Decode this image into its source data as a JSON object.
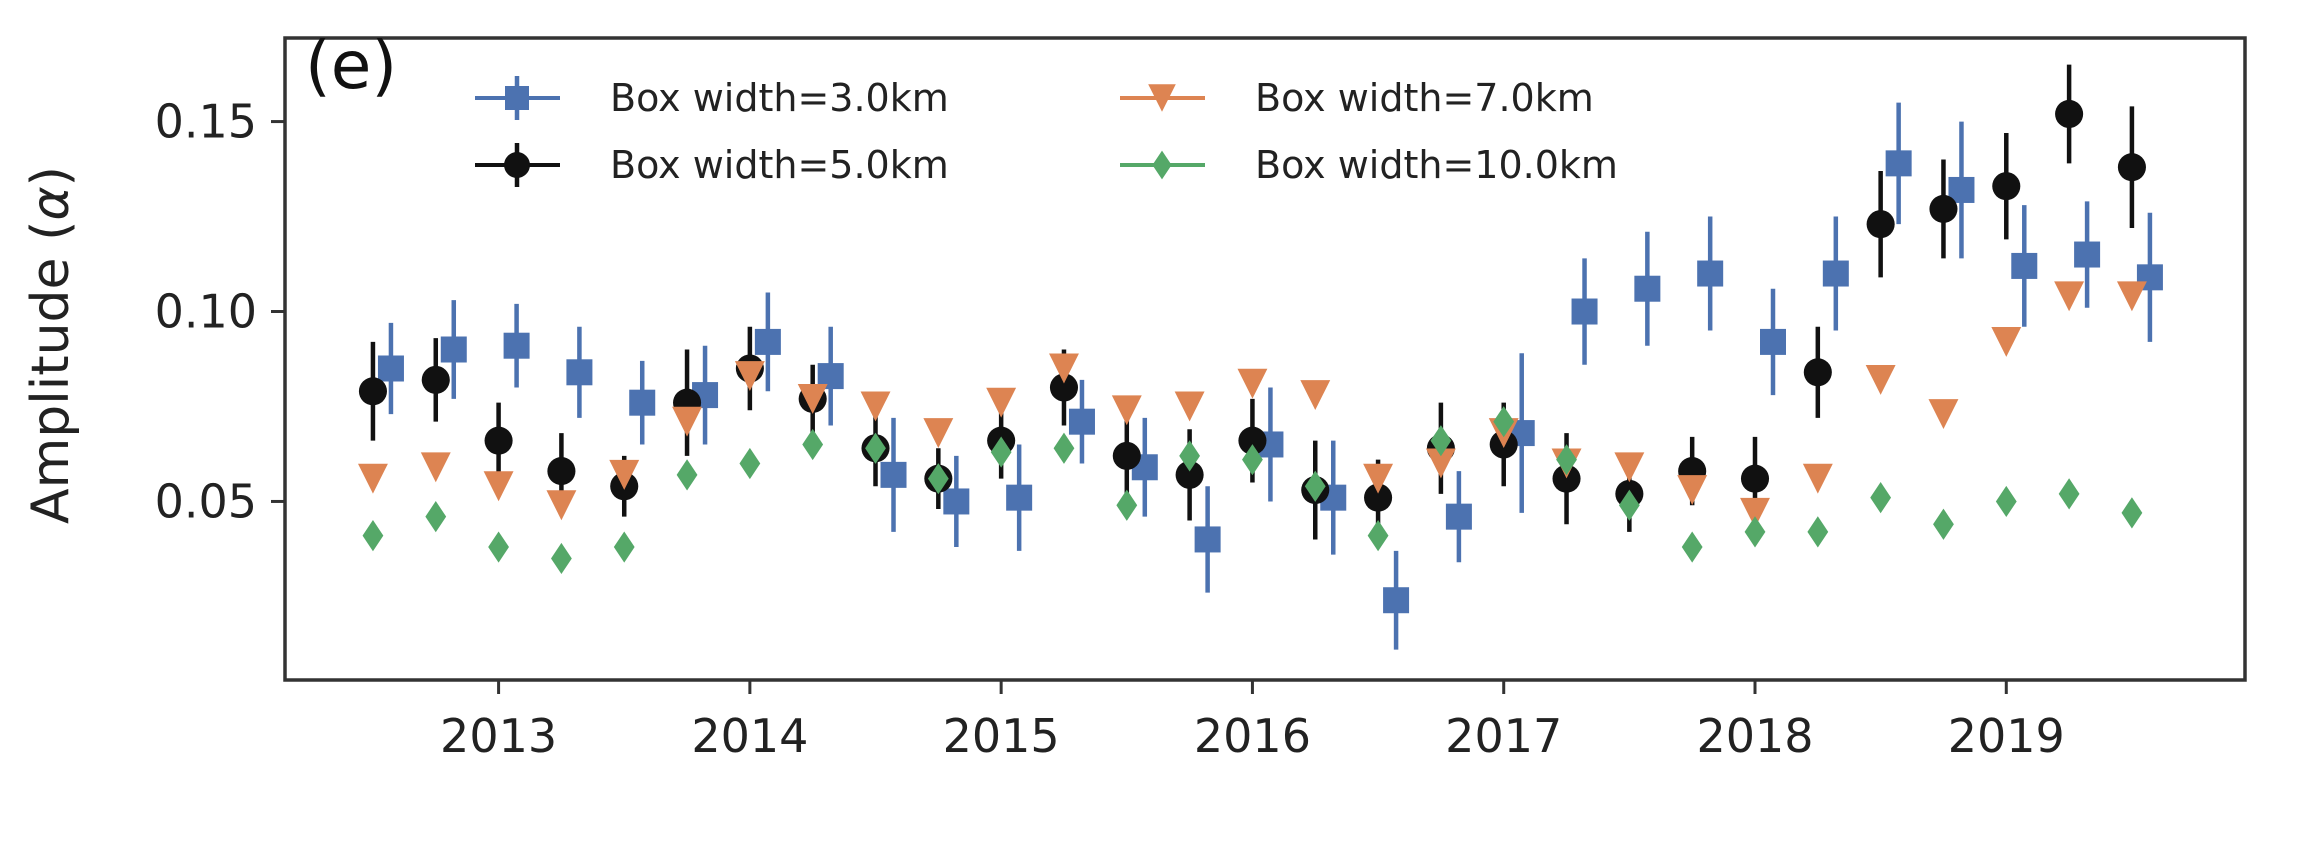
{
  "chart_data": {
    "type": "scatter",
    "panel_label": "(e)",
    "ylabel_text": "Amplitude (",
    "ylabel_symbol": "α",
    "ylabel_close": ")",
    "xlabel": "",
    "xlim": [
      2012.15,
      2019.95
    ],
    "ylim": [
      0.003,
      0.172
    ],
    "x_ticks": [
      2013,
      2014,
      2015,
      2016,
      2017,
      2018,
      2019
    ],
    "x_tick_labels": [
      "2013",
      "2014",
      "2015",
      "2016",
      "2017",
      "2018",
      "2019"
    ],
    "y_ticks": [
      0.05,
      0.1,
      0.15
    ],
    "y_tick_labels": [
      "0.05",
      "0.10",
      "0.15"
    ],
    "grid": false,
    "legend_position": "top",
    "x": [
      2012.5,
      2012.75,
      2013.0,
      2013.25,
      2013.5,
      2013.75,
      2014.0,
      2014.25,
      2014.5,
      2014.75,
      2015.0,
      2015.25,
      2015.5,
      2015.75,
      2016.0,
      2016.25,
      2016.5,
      2016.75,
      2017.0,
      2017.25,
      2017.5,
      2017.75,
      2018.0,
      2018.25,
      2018.5,
      2018.75,
      2019.0,
      2019.25,
      2019.5
    ],
    "series": [
      {
        "name": "Box width=3.0km",
        "color": "#4c72b0",
        "marker": "square",
        "values": [
          0.085,
          0.09,
          0.091,
          0.084,
          0.076,
          0.078,
          0.092,
          0.083,
          0.057,
          0.05,
          0.051,
          0.071,
          0.059,
          0.04,
          0.065,
          0.051,
          0.024,
          0.046,
          0.068,
          0.1,
          0.106,
          0.11,
          0.092,
          0.11,
          0.139,
          0.132,
          0.112,
          0.115,
          0.109
        ],
        "errors": [
          0.012,
          0.013,
          0.011,
          0.012,
          0.011,
          0.013,
          0.013,
          0.013,
          0.015,
          0.012,
          0.014,
          0.011,
          0.013,
          0.014,
          0.015,
          0.015,
          0.013,
          0.012,
          0.021,
          0.014,
          0.015,
          0.015,
          0.014,
          0.015,
          0.016,
          0.018,
          0.016,
          0.014,
          0.017
        ]
      },
      {
        "name": "Box width=5.0km",
        "color": "#111111",
        "marker": "circle",
        "values": [
          0.079,
          0.082,
          0.066,
          0.058,
          0.054,
          0.076,
          0.085,
          0.077,
          0.064,
          0.056,
          0.066,
          0.08,
          0.062,
          0.057,
          0.066,
          0.053,
          0.051,
          0.064,
          0.065,
          0.056,
          0.052,
          0.058,
          0.056,
          0.084,
          0.123,
          0.127,
          0.133,
          0.152,
          0.138
        ],
        "errors": [
          0.013,
          0.011,
          0.01,
          0.01,
          0.008,
          0.014,
          0.011,
          0.009,
          0.01,
          0.008,
          0.01,
          0.01,
          0.01,
          0.012,
          0.011,
          0.013,
          0.01,
          0.012,
          0.011,
          0.012,
          0.01,
          0.009,
          0.011,
          0.012,
          0.014,
          0.013,
          0.014,
          0.013,
          0.016
        ]
      },
      {
        "name": "Box width=7.0km",
        "color": "#dd8452",
        "marker": "triangle-down",
        "values": [
          0.056,
          0.059,
          0.054,
          0.049,
          0.057,
          0.071,
          0.083,
          0.077,
          0.075,
          0.068,
          0.076,
          0.085,
          0.074,
          0.075,
          0.081,
          0.078,
          0.056,
          0.06,
          0.068,
          0.06,
          0.059,
          0.053,
          0.047,
          0.056,
          0.082,
          0.073,
          0.092,
          0.104,
          0.104
        ]
      },
      {
        "name": "Box width=10.0km",
        "color": "#55a868",
        "marker": "diamond",
        "values": [
          0.041,
          0.046,
          0.038,
          0.035,
          0.038,
          0.057,
          0.06,
          0.065,
          0.064,
          0.056,
          0.063,
          0.064,
          0.049,
          0.062,
          0.061,
          0.054,
          0.041,
          0.066,
          0.071,
          0.061,
          0.049,
          0.038,
          0.042,
          0.042,
          0.051,
          0.044,
          0.05,
          0.052,
          0.047
        ]
      }
    ],
    "axis_color": "#333333"
  }
}
